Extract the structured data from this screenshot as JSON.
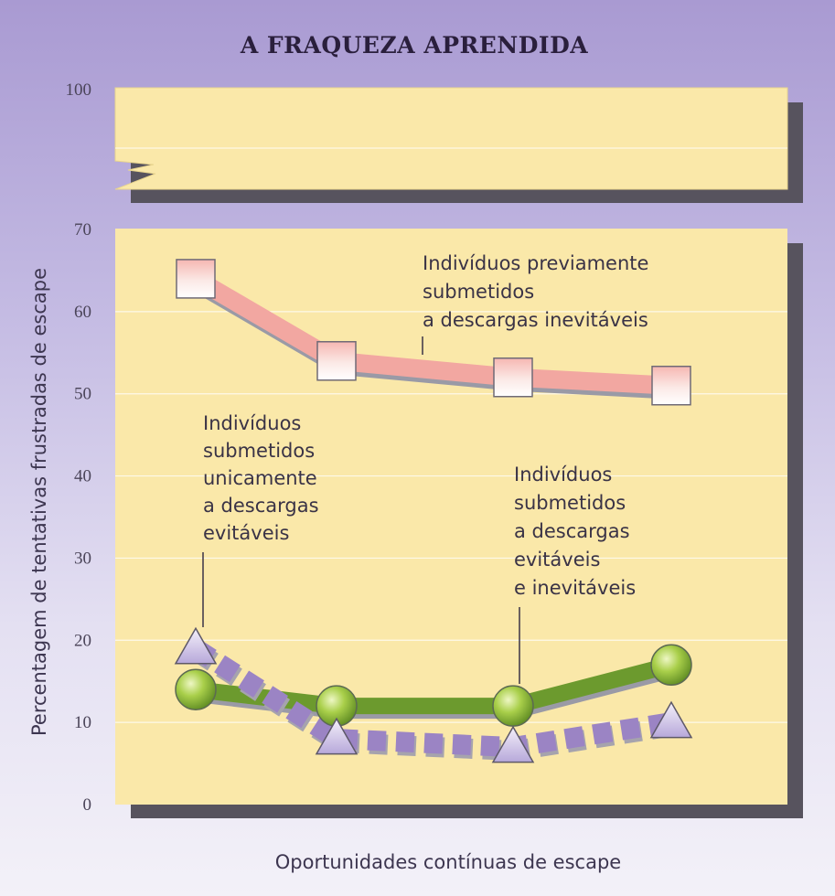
{
  "chart_data": {
    "type": "line",
    "title": "A FRAQUEZA APRENDIDA",
    "xlabel": "Oportunidades contínuas de escape",
    "ylabel": "Percentagem de tentativas frustradas de escape",
    "ylim": [
      0,
      100
    ],
    "axis_break": [
      70,
      100
    ],
    "y_ticks": [
      "0",
      "10",
      "20",
      "30",
      "40",
      "50",
      "60",
      "70",
      "100"
    ],
    "x": [
      1,
      2,
      3,
      4
    ],
    "grid": true,
    "series": [
      {
        "name": "Indivíduos previamente submetidos a descargas inevitáveis",
        "label_lines": [
          "Indivíduos previamente",
          "submetidos",
          "a descargas inevitáveis"
        ],
        "marker": "square",
        "color": "#f2a7a1",
        "values": [
          64,
          54,
          52,
          51
        ]
      },
      {
        "name": "Indivíduos submetidos unicamente a descargas evitáveis",
        "label_lines": [
          "Indivíduos",
          "submetidos",
          "unicamente",
          "a descargas",
          "evitáveis"
        ],
        "marker": "triangle",
        "color": "#9b84c4",
        "values": [
          19,
          8,
          7,
          10
        ]
      },
      {
        "name": "Indivíduos submetidos a descargas evitáveis e inevitáveis",
        "label_lines": [
          "Indivíduos",
          "submetidos",
          "a descargas",
          "evitáveis",
          "e inevitáveis"
        ],
        "marker": "circle",
        "color": "#6c9a2e",
        "values": [
          14,
          12,
          12,
          17
        ]
      }
    ]
  }
}
